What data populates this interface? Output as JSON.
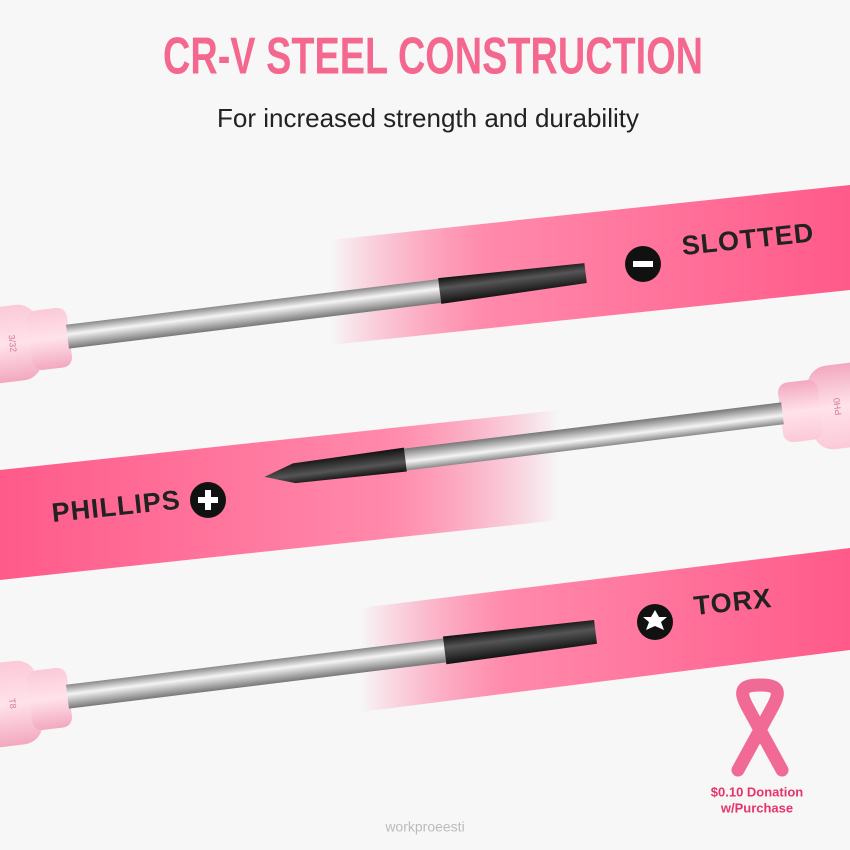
{
  "header": {
    "title": "CR-V STEEL CONSTRUCTION",
    "subtitle": "For increased strength and durability"
  },
  "tools": [
    {
      "label": "SLOTTED",
      "marking": "3/32"
    },
    {
      "label": "PHILLIPS",
      "marking": "PH0"
    },
    {
      "label": "TORX",
      "marking": "T8"
    }
  ],
  "badge": {
    "line1": "$0.10 Donation",
    "line2": "w/Purchase"
  },
  "watermark": "workproeesti"
}
